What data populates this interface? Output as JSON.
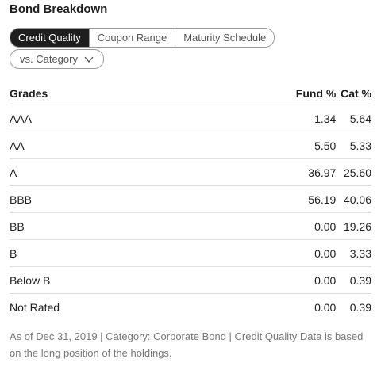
{
  "header": {
    "title": "Bond Breakdown"
  },
  "tabs": [
    "Credit Quality",
    "Coupon Range",
    "Maturity Schedule"
  ],
  "dropdown": {
    "label": "vs. Category"
  },
  "table": {
    "headers": [
      "Grades",
      "Fund  %",
      "Cat  %"
    ],
    "rows": [
      [
        "AAA",
        "1.34",
        "5.64"
      ],
      [
        "AA",
        "5.50",
        "5.33"
      ],
      [
        "A",
        "36.97",
        "25.60"
      ],
      [
        "BBB",
        "56.19",
        "40.06"
      ],
      [
        "BB",
        "0.00",
        "19.26"
      ],
      [
        "B",
        "0.00",
        "3.33"
      ],
      [
        "Below B",
        "0.00",
        "0.39"
      ],
      [
        "Not Rated",
        "0.00",
        "0.39"
      ]
    ]
  },
  "footnote": "As of Dec 31, 2019 | Category: Corporate Bond | Credit Quality Data is based on the long position of the holdings."
}
